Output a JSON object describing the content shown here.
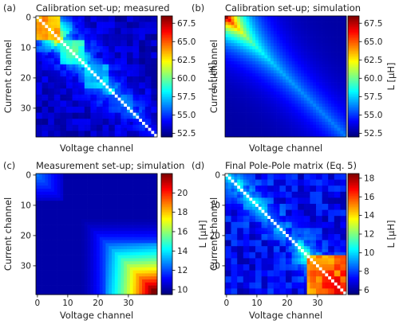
{
  "chart_data": [
    {
      "type": "heatmap",
      "panel_label": "(a)",
      "title": "Calibration set-up; measured",
      "xlabel": "Voltage channel",
      "ylabel": "Current channel",
      "x_ticks": [],
      "y_ticks": [
        0,
        10,
        20,
        30
      ],
      "grid_size": 40,
      "colormap": "jet",
      "colorbar": {
        "label": "L [μH]",
        "ticks": [
          52.5,
          55.0,
          57.5,
          60.0,
          62.5,
          65.0,
          67.5
        ],
        "range": [
          52.0,
          68.5
        ]
      },
      "diagonal_marked": true,
      "pattern": "measured",
      "region_means": [
        {
          "name": "block 0-7",
          "value": 64
        },
        {
          "name": "block 8-15",
          "value": 59
        },
        {
          "name": "block 16-24",
          "value": 57
        },
        {
          "name": "block 25-32",
          "value": 55.5
        },
        {
          "name": "block 33-39",
          "value": 54
        },
        {
          "name": "far off-diagonal",
          "value": 53
        }
      ]
    },
    {
      "type": "heatmap",
      "panel_label": "(b)",
      "title": "Calibration set-up; simulation",
      "xlabel": "Voltage channel",
      "ylabel": "Current channel",
      "x_ticks": [],
      "y_ticks": [],
      "grid_size": 40,
      "colormap": "jet",
      "colorbar": {
        "label": "L [μH]",
        "ticks": [
          52.5,
          55.0,
          57.5,
          60.0,
          62.5,
          65.0,
          67.5
        ],
        "range": [
          52.0,
          68.5
        ]
      },
      "diagonal_marked": false,
      "pattern": "smooth-calibration",
      "region_means": [
        {
          "name": "corner 0-5",
          "value": 67.5
        },
        {
          "name": "diagonal mid",
          "value": 58
        },
        {
          "name": "diagonal end",
          "value": 56
        },
        {
          "name": "far off-diagonal",
          "value": 52.5
        }
      ]
    },
    {
      "type": "heatmap",
      "panel_label": "(c)",
      "title": "Measurement set-up; simulation",
      "xlabel": "Voltage channel",
      "ylabel": "Current channel",
      "x_ticks": [
        0,
        10,
        20,
        30
      ],
      "y_ticks": [
        0,
        10,
        20,
        30
      ],
      "grid_size": 40,
      "colormap": "jet",
      "colorbar": {
        "label": "L [μH]",
        "ticks": [
          10,
          12,
          14,
          16,
          18,
          20
        ],
        "range": [
          9.5,
          22
        ]
      },
      "diagonal_marked": false,
      "pattern": "measurement-simulation",
      "region_means": [
        {
          "name": "corner 0-8",
          "value": 12.5
        },
        {
          "name": "middle",
          "value": 10
        },
        {
          "name": "corner 30-39",
          "value": 21
        }
      ]
    },
    {
      "type": "heatmap",
      "panel_label": "(d)",
      "title": "Final Pole-Pole matrix (Eq. 5)",
      "xlabel": "Voltage channel",
      "ylabel": "Current channel",
      "x_ticks": [
        0,
        10,
        20,
        30
      ],
      "y_ticks": [
        0,
        10,
        20,
        30
      ],
      "grid_size": 40,
      "colormap": "jet",
      "colorbar": {
        "label": "L [μH]",
        "ticks": [
          6,
          8,
          10,
          12,
          14,
          16,
          18
        ],
        "range": [
          5.5,
          18.5
        ]
      },
      "diagonal_marked": true,
      "pattern": "final",
      "region_means": [
        {
          "name": "diagonal start",
          "value": 11
        },
        {
          "name": "middle",
          "value": 8
        },
        {
          "name": "corner 30-39",
          "value": 17
        }
      ]
    }
  ]
}
